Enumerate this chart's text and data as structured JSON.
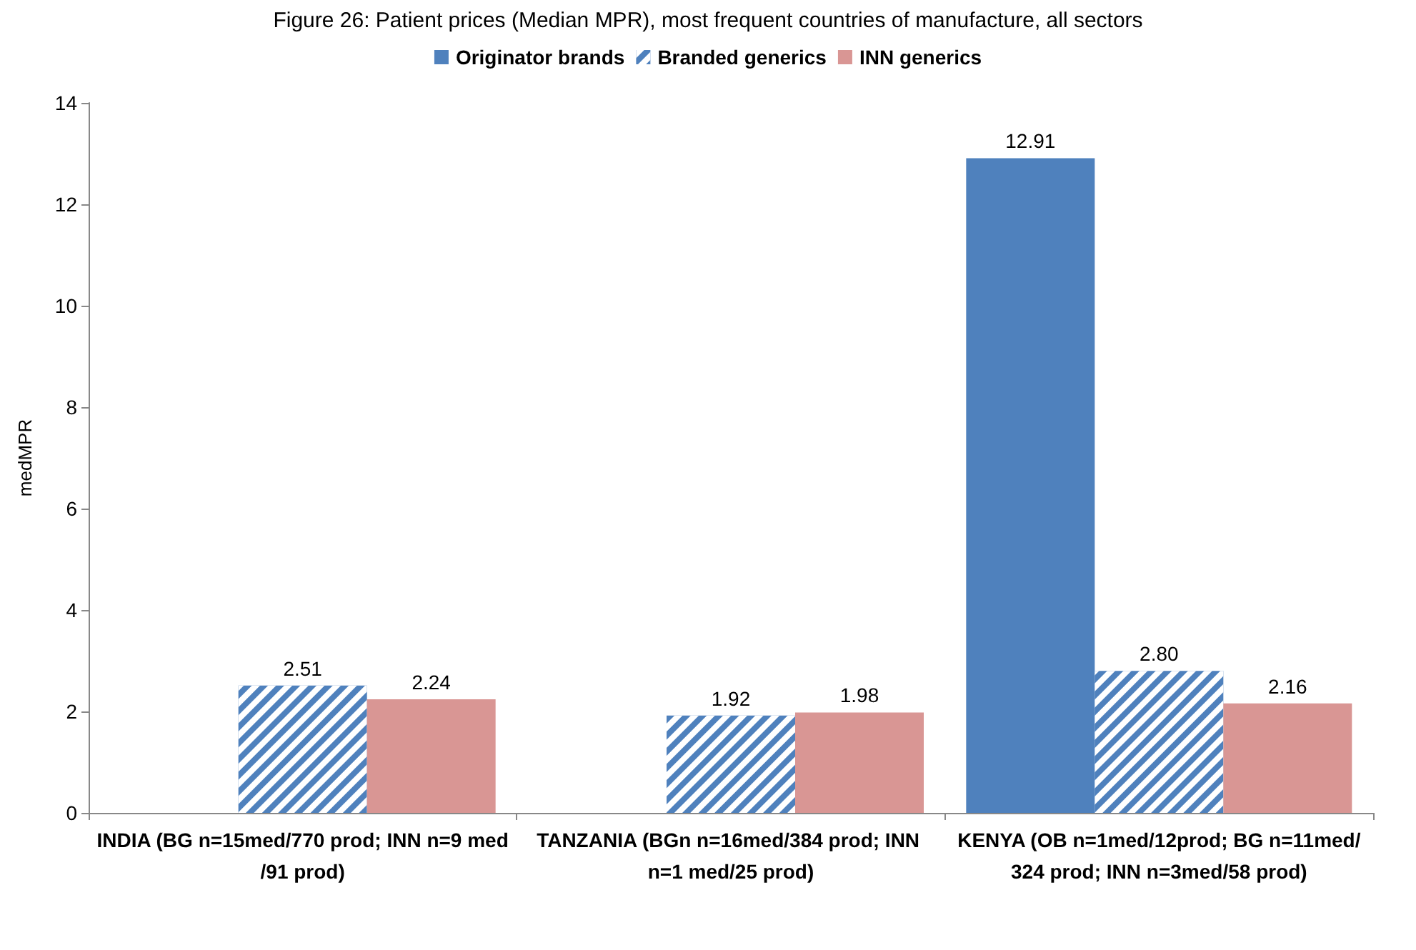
{
  "chart_data": {
    "type": "bar",
    "title": "Figure 26: Patient prices (Median MPR), most frequent countries of manufacture, all sectors",
    "categories": [
      "INDIA (BG n=15med/770 prod; INN n=9 med/91 prod)",
      "TANZANIA (BGn n=16med/384 prod; INN n=1 med/25 prod)",
      "KENYA (OB n=1med/12prod; BG n=11med/324 prod; INN n=3med/58 prod)"
    ],
    "series": [
      {
        "name": "Originator brands",
        "color": "#4f81bd",
        "values": [
          null,
          null,
          12.91
        ],
        "value_labels": [
          null,
          null,
          "12.91"
        ]
      },
      {
        "name": "Branded generics",
        "color": "#4f81bd",
        "values": [
          2.51,
          1.92,
          2.8
        ],
        "value_labels": [
          "2.51",
          "1.92",
          "2.80"
        ]
      },
      {
        "name": "INN generics",
        "color": "#d99694",
        "values": [
          2.24,
          1.98,
          2.16
        ],
        "value_labels": [
          "2.24",
          "1.98",
          "2.16"
        ]
      }
    ],
    "ylabel": "medMPR",
    "ylim": [
      0,
      14
    ],
    "yticks": [
      0,
      2,
      4,
      6,
      8,
      10,
      12,
      14
    ],
    "grid": false,
    "legend": "top"
  }
}
